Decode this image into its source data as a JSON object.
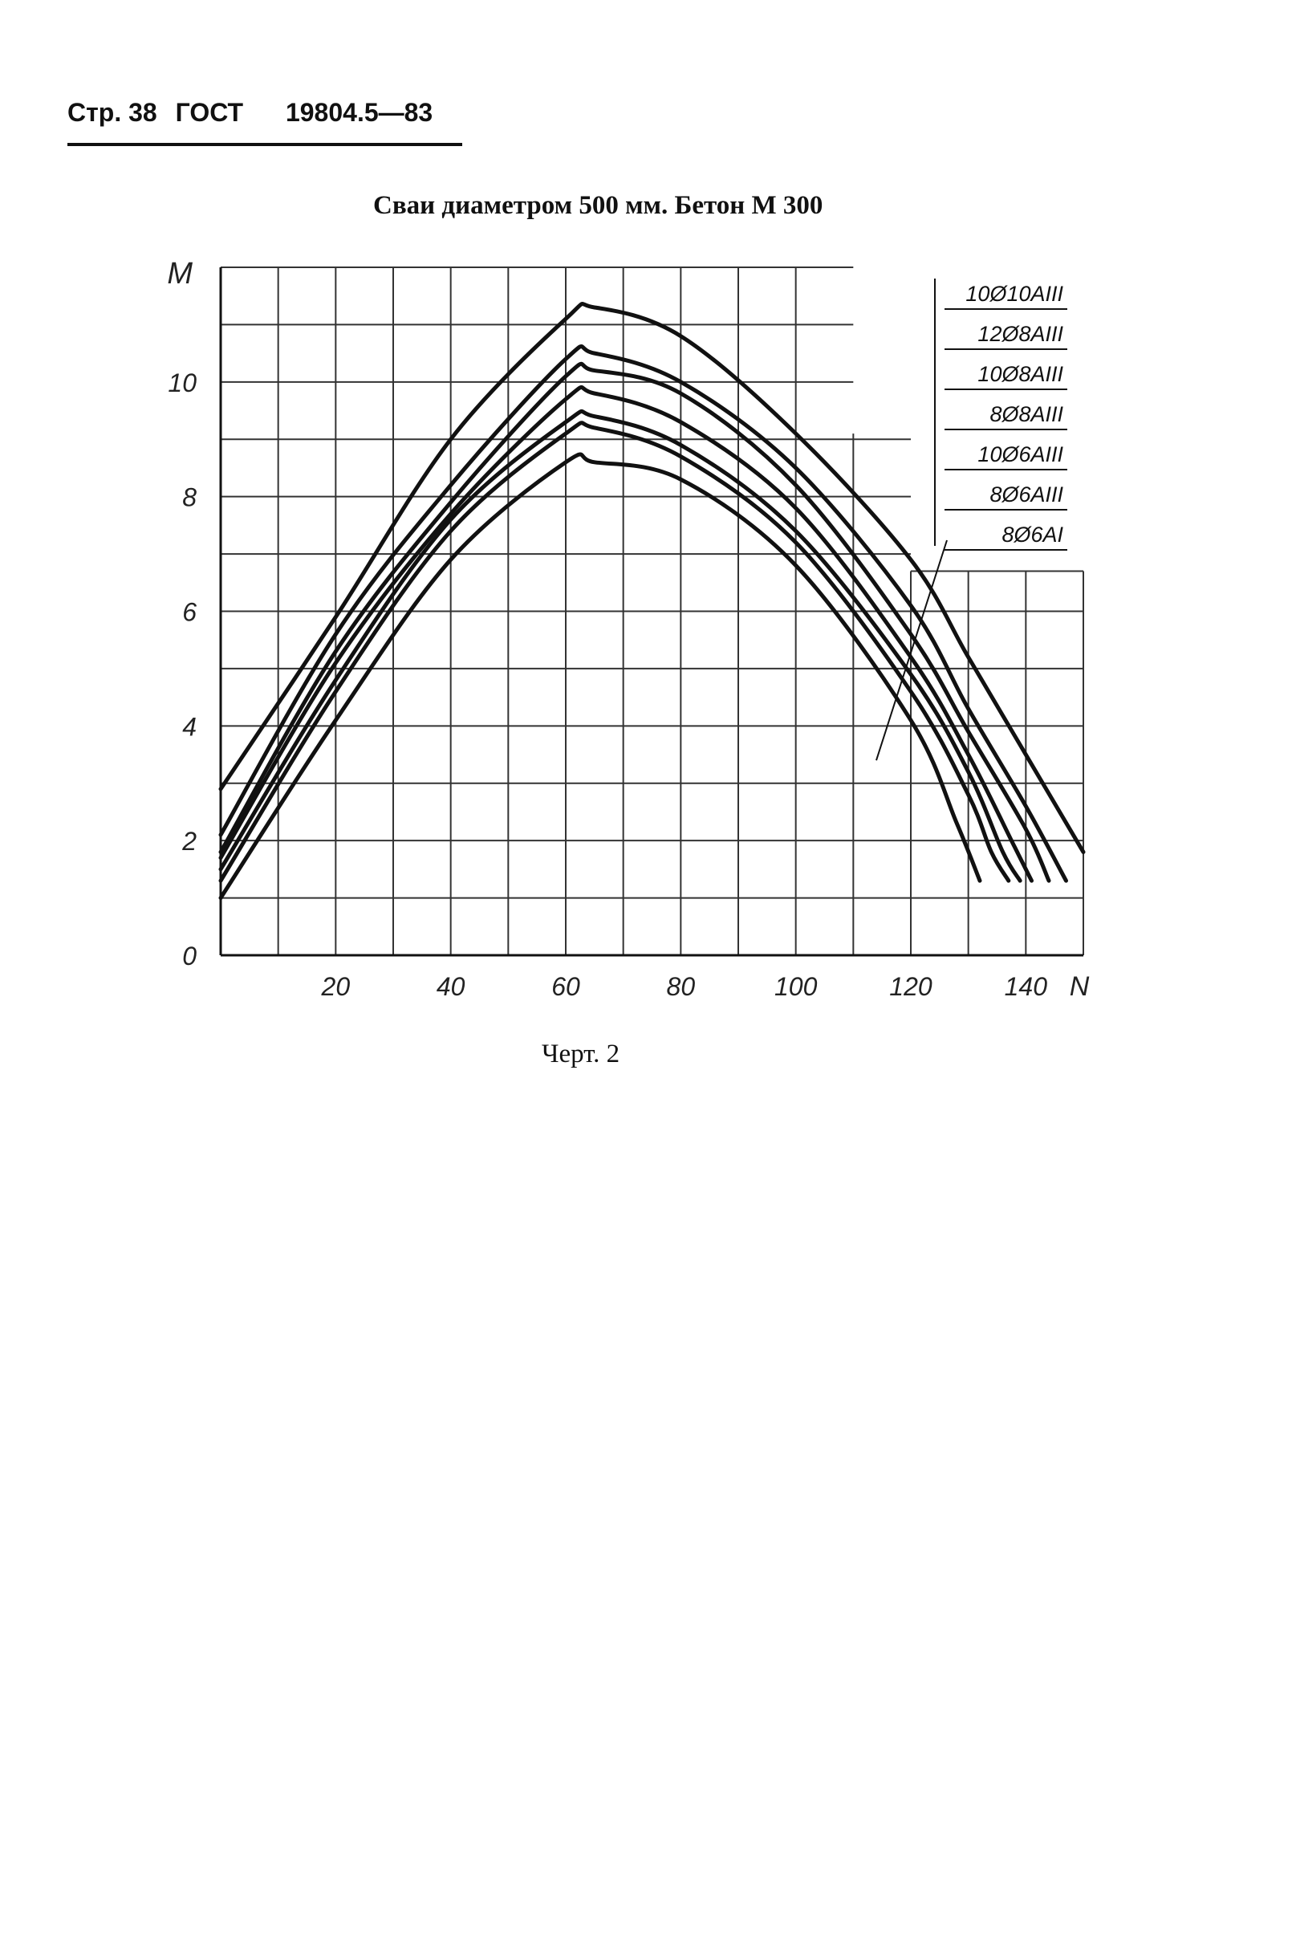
{
  "header": {
    "page": "Стр. 38",
    "standard": "ГОСТ",
    "number": "19804.5—83"
  },
  "title": "Сваи диаметром 500 мм. Бетон М 300",
  "caption": "Черт. 2",
  "chart_data": {
    "type": "line",
    "title": "Сваи диаметром 500 мм. Бетон М 300",
    "xlabel": "N",
    "ylabel": "M",
    "xlim": [
      0,
      150
    ],
    "ylim": [
      0,
      12
    ],
    "x_ticks": [
      "20",
      "40",
      "60",
      "80",
      "100",
      "120",
      "140"
    ],
    "y_ticks": [
      "0",
      "2",
      "4",
      "6",
      "8",
      "10"
    ],
    "grid": true,
    "legend_position": "top-right",
    "series": [
      {
        "name": "10Ø10AIII",
        "x": [
          0,
          20,
          40,
          60,
          65,
          80,
          100,
          120,
          130,
          140,
          150
        ],
        "y": [
          2.9,
          5.9,
          9.0,
          11.1,
          11.3,
          10.8,
          9.1,
          6.9,
          5.2,
          3.5,
          1.8
        ]
      },
      {
        "name": "12Ø8AIII",
        "x": [
          0,
          20,
          40,
          60,
          65,
          80,
          100,
          120,
          130,
          140,
          147
        ],
        "y": [
          2.1,
          5.6,
          8.2,
          10.4,
          10.5,
          10.0,
          8.5,
          6.1,
          4.3,
          2.6,
          1.3
        ]
      },
      {
        "name": "10Ø8AIII",
        "x": [
          0,
          20,
          40,
          60,
          65,
          80,
          100,
          120,
          130,
          140,
          144
        ],
        "y": [
          1.8,
          5.3,
          7.9,
          10.1,
          10.2,
          9.8,
          8.2,
          5.6,
          3.9,
          2.2,
          1.3
        ]
      },
      {
        "name": "8Ø8AIII",
        "x": [
          0,
          20,
          40,
          60,
          65,
          80,
          100,
          120,
          130,
          138,
          141
        ],
        "y": [
          1.7,
          5.1,
          7.7,
          9.7,
          9.8,
          9.3,
          7.8,
          5.2,
          3.5,
          1.9,
          1.3
        ]
      },
      {
        "name": "10Ø6AIII",
        "x": [
          0,
          20,
          40,
          60,
          65,
          80,
          100,
          120,
          130,
          136,
          139
        ],
        "y": [
          1.5,
          4.8,
          7.6,
          9.3,
          9.4,
          8.9,
          7.4,
          4.9,
          3.2,
          1.8,
          1.3
        ]
      },
      {
        "name": "8Ø6AIII",
        "x": [
          0,
          20,
          40,
          60,
          65,
          80,
          100,
          120,
          130,
          134,
          137
        ],
        "y": [
          1.3,
          4.6,
          7.4,
          9.1,
          9.2,
          8.7,
          7.2,
          4.6,
          2.8,
          1.8,
          1.3
        ]
      },
      {
        "name": "8Ø6AI",
        "x": [
          0,
          20,
          40,
          60,
          65,
          80,
          100,
          120,
          128,
          132
        ],
        "y": [
          1.0,
          4.1,
          6.9,
          8.6,
          8.6,
          8.3,
          6.8,
          4.1,
          2.3,
          1.3
        ]
      }
    ]
  }
}
